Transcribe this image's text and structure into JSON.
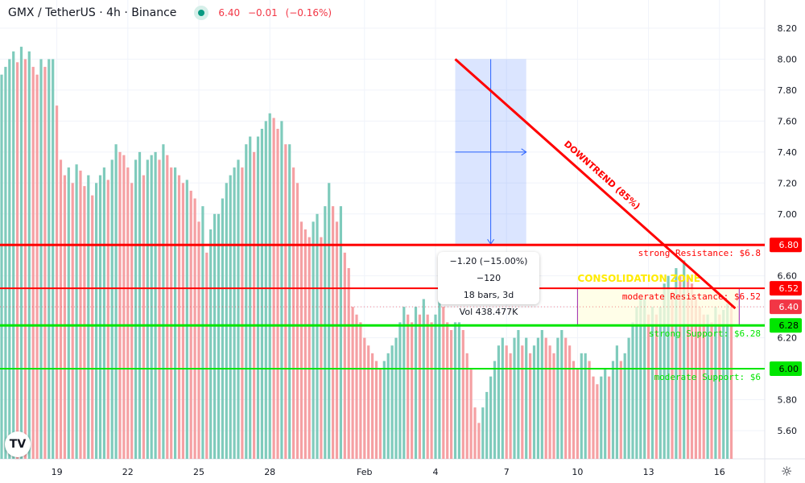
{
  "header": {
    "title": "GMX / TetherUS · 4h · Binance",
    "price": "6.40",
    "change": "−0.01",
    "change_pct": "(−0.16%)"
  },
  "colors": {
    "up": "#7fcbbc",
    "down": "#f5a0a3",
    "resistance": "#ff0000",
    "support": "#00e600",
    "measure": "#2962ff",
    "consolidation": "#9c27b0",
    "zone_text": "#ffeb00",
    "last": "#f23645"
  },
  "price_axis": {
    "ticks": [
      "8.20",
      "8.00",
      "7.80",
      "7.60",
      "7.40",
      "7.20",
      "7.00",
      "6.60",
      "6.20",
      "5.80",
      "5.60"
    ],
    "tick_values": [
      8.2,
      8.0,
      7.8,
      7.6,
      7.4,
      7.2,
      7.0,
      6.6,
      6.2,
      5.8,
      5.6
    ],
    "markers": [
      {
        "label": "6.80",
        "value": 6.8,
        "bg": "#ff0000",
        "fg": "#fff"
      },
      {
        "label": "6.52",
        "value": 6.52,
        "bg": "#ff0000",
        "fg": "#fff"
      },
      {
        "label": "6.40",
        "value": 6.4,
        "bg": "#f23645",
        "fg": "#fff"
      },
      {
        "label": "6.28",
        "value": 6.28,
        "bg": "#00e600",
        "fg": "#000"
      },
      {
        "label": "6.00",
        "value": 6.0,
        "bg": "#00e600",
        "fg": "#000"
      }
    ]
  },
  "time_axis": {
    "labels": [
      "19",
      "22",
      "25",
      "28",
      "Feb",
      "4",
      "7",
      "10",
      "13",
      "16"
    ],
    "bar_index": [
      14,
      32,
      50,
      68,
      92,
      110,
      128,
      146,
      164,
      182
    ]
  },
  "levels": [
    {
      "value": 6.8,
      "label": "strong Resistance: $6.8",
      "color": "#ff0000",
      "width": 3
    },
    {
      "value": 6.52,
      "label": "moderate Resistance: $6.52",
      "color": "#ff0000",
      "width": 2
    },
    {
      "value": 6.28,
      "label": "strong Support: $6.28",
      "color": "#00e600",
      "width": 3
    },
    {
      "value": 6.0,
      "label": "moderate Support: $6",
      "color": "#00e600",
      "width": 2
    }
  ],
  "trendline": {
    "label": "DOWNTREND (85%)",
    "from": {
      "bar": 115,
      "price": 8.0
    },
    "to": {
      "bar": 186,
      "price": 6.39
    }
  },
  "consolidation": {
    "label": "CONSOLIDATION ZONE",
    "from_bar": 146,
    "to_bar": 187,
    "top": 6.52,
    "bottom": 6.28
  },
  "measure": {
    "from_bar": 115,
    "to_bar": 133,
    "top": 8.0,
    "bottom": 6.8,
    "tooltip": [
      "−1.20 (−15.00%) −120",
      "18 bars, 3d",
      "Vol 438.477K"
    ]
  },
  "chart_data": {
    "type": "bar",
    "title": "GMX / TetherUS · 4h · Binance",
    "ylim": [
      5.45,
      8.3
    ],
    "closes": [
      7.9,
      7.95,
      8.0,
      8.05,
      7.98,
      8.08,
      8.0,
      8.05,
      7.95,
      7.9,
      8.0,
      7.95,
      8.0,
      8.0,
      7.7,
      7.35,
      7.25,
      7.3,
      7.2,
      7.32,
      7.28,
      7.18,
      7.25,
      7.12,
      7.2,
      7.25,
      7.3,
      7.22,
      7.35,
      7.45,
      7.4,
      7.38,
      7.3,
      7.2,
      7.35,
      7.4,
      7.25,
      7.35,
      7.38,
      7.4,
      7.35,
      7.45,
      7.38,
      7.3,
      7.3,
      7.25,
      7.2,
      7.22,
      7.15,
      7.1,
      6.95,
      7.05,
      6.75,
      6.9,
      7.0,
      7.0,
      7.1,
      7.2,
      7.25,
      7.3,
      7.35,
      7.3,
      7.45,
      7.5,
      7.4,
      7.5,
      7.55,
      7.6,
      7.65,
      7.62,
      7.55,
      7.6,
      7.45,
      7.45,
      7.3,
      7.2,
      6.95,
      6.9,
      6.85,
      6.95,
      7.0,
      6.85,
      7.05,
      7.2,
      7.05,
      6.95,
      7.05,
      6.75,
      6.65,
      6.4,
      6.35,
      6.3,
      6.2,
      6.15,
      6.1,
      6.05,
      6.0,
      6.05,
      6.1,
      6.15,
      6.2,
      6.3,
      6.4,
      6.35,
      6.3,
      6.4,
      6.35,
      6.45,
      6.35,
      6.3,
      6.35,
      6.5,
      6.4,
      6.3,
      6.25,
      6.3,
      6.3,
      6.25,
      6.1,
      6.0,
      5.75,
      5.65,
      5.75,
      5.85,
      5.95,
      6.05,
      6.15,
      6.2,
      6.15,
      6.1,
      6.2,
      6.25,
      6.15,
      6.2,
      6.1,
      6.15,
      6.2,
      6.25,
      6.2,
      6.15,
      6.1,
      6.2,
      6.25,
      6.2,
      6.15,
      6.05,
      6.0,
      6.1,
      6.1,
      6.05,
      5.95,
      5.9,
      5.95,
      6.0,
      5.95,
      6.05,
      6.15,
      6.05,
      6.1,
      6.2,
      6.3,
      6.4,
      6.45,
      6.45,
      6.35,
      6.4,
      6.35,
      6.4,
      6.55,
      6.6,
      6.5,
      6.65,
      6.6,
      6.7,
      6.6,
      6.55,
      6.45,
      6.4,
      6.35,
      6.35,
      6.3,
      6.4,
      6.35,
      6.38,
      6.42,
      6.4
    ],
    "last_price": 6.4
  }
}
